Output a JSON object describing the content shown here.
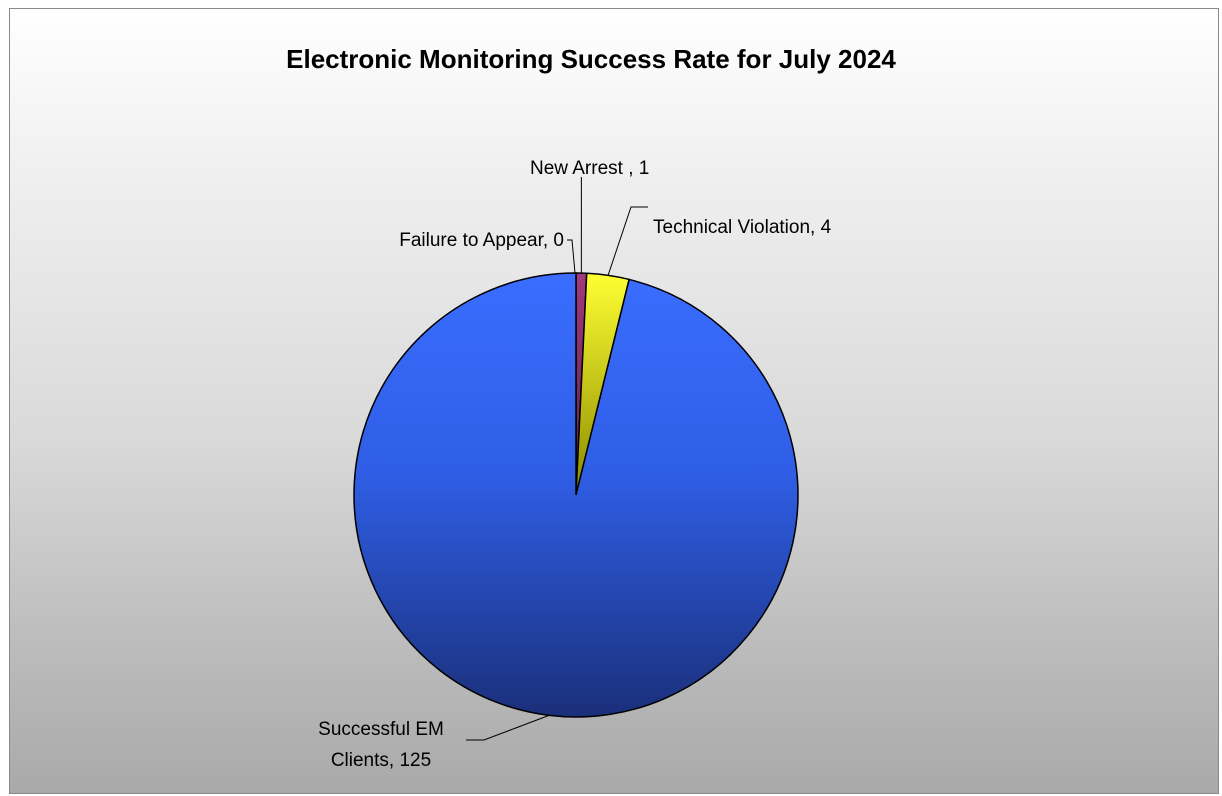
{
  "chart_data": {
    "type": "pie",
    "title": "Electronic Monitoring Success Rate for July 2024",
    "slices": [
      {
        "label": "Failure to Appear",
        "value": 0,
        "display": "Failure to Appear, 0",
        "color": "#7b2d5e"
      },
      {
        "label": "New Arrest",
        "value": 1,
        "display": "New Arrest , 1",
        "color": "#8b2a6a"
      },
      {
        "label": "Technical Violation",
        "value": 4,
        "display": "Technical Violation, 4",
        "color": "#ffff33"
      },
      {
        "label": "Successful EM Clients",
        "value": 125,
        "display_lines": [
          "Successful EM",
          "Clients, 125"
        ],
        "color": "#3366ff"
      }
    ],
    "start_angle": "12 o'clock, clockwise",
    "legend": "none"
  }
}
